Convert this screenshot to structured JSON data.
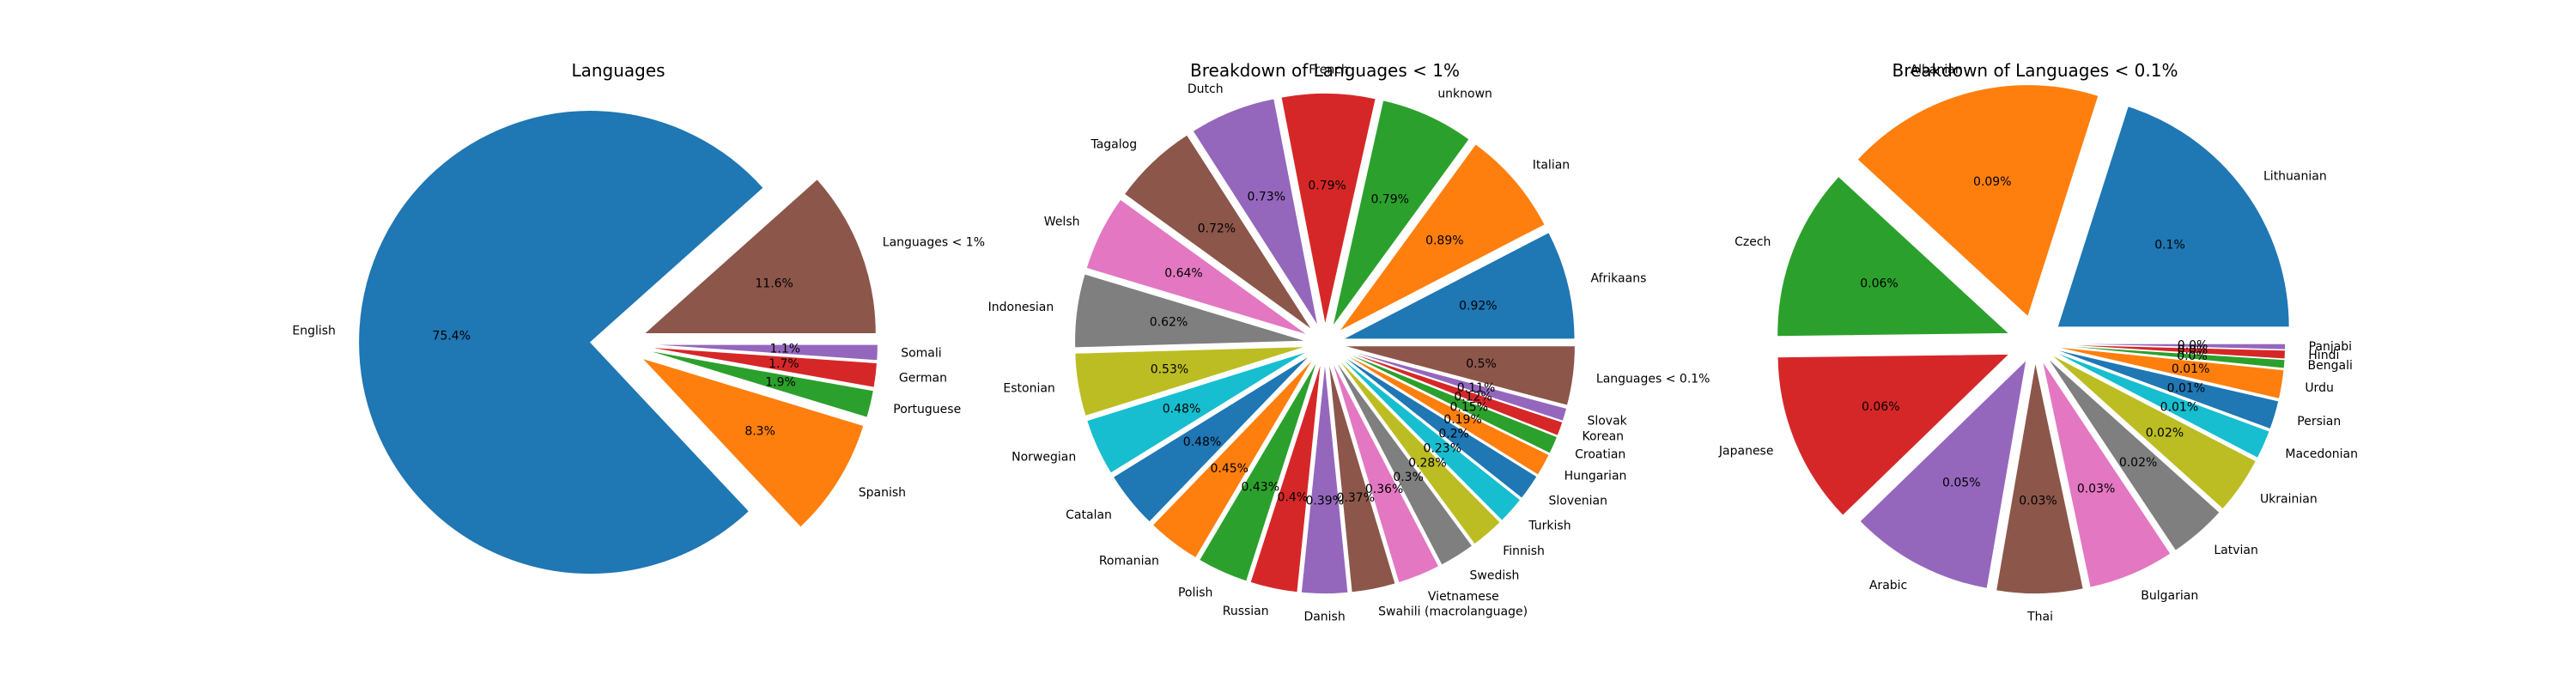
{
  "chart_data": [
    {
      "type": "pie",
      "title": "Languages",
      "start_angle": 0,
      "labels": [
        "Languages < 1%",
        "English",
        "Spanish",
        "Portuguese",
        "German",
        "Somali"
      ],
      "values": [
        11.6,
        75.4,
        8.3,
        1.9,
        1.7,
        1.1
      ],
      "pct_labels": [
        "11.6%",
        "75.4%",
        "8.3%",
        "1.9%",
        "1.7%",
        "1.1%"
      ],
      "colors": [
        "#8c564b",
        "#1f77b4",
        "#ff7f0e",
        "#2ca02c",
        "#d62728",
        "#9467bd"
      ],
      "explode": [
        0.12,
        0.12,
        0.12,
        0.12,
        0.12,
        0.12
      ]
    },
    {
      "type": "pie",
      "title": "Breakdown of Languages < 1%",
      "start_angle": 0,
      "labels": [
        "Afrikaans",
        "Italian",
        "unknown",
        "French",
        "Dutch",
        "Tagalog",
        "Welsh",
        "Indonesian",
        "Estonian",
        "Norwegian",
        "Catalan",
        "Romanian",
        "Polish",
        "Russian",
        "Danish",
        "Swahili (macrolanguage)",
        "Vietnamese",
        "Swedish",
        "Finnish",
        "Turkish",
        "Slovenian",
        "Hungarian",
        "Croatian",
        "Korean",
        "Slovak",
        "Languages < 0.1%"
      ],
      "values": [
        0.92,
        0.89,
        0.79,
        0.79,
        0.73,
        0.72,
        0.64,
        0.62,
        0.53,
        0.48,
        0.48,
        0.45,
        0.43,
        0.4,
        0.39,
        0.37,
        0.36,
        0.3,
        0.28,
        0.23,
        0.22,
        0.19,
        0.15,
        0.12,
        0.11,
        0.5
      ],
      "pct_labels": [
        "0.92%",
        "0.89%",
        "0.79%",
        "0.79%",
        "0.73%",
        "0.72%",
        "0.64%",
        "0.62%",
        "0.53%",
        "0.48%",
        "0.48%",
        "0.45%",
        "0.43%",
        "0.4%",
        "0.39%",
        "0.37%",
        "0.36%",
        "0.3%",
        "0.28%",
        "0.23%",
        "0.2%",
        "0.19%",
        "0.15%",
        "0.12%",
        "0.11%",
        "0.5%"
      ],
      "colors": [
        "#1f77b4",
        "#ff7f0e",
        "#2ca02c",
        "#d62728",
        "#9467bd",
        "#8c564b",
        "#e377c2",
        "#7f7f7f",
        "#bcbd22",
        "#17becf",
        "#1f77b4",
        "#ff7f0e",
        "#2ca02c",
        "#d62728",
        "#9467bd",
        "#8c564b",
        "#e377c2",
        "#7f7f7f",
        "#bcbd22",
        "#17becf",
        "#1f77b4",
        "#ff7f0e",
        "#2ca02c",
        "#d62728",
        "#9467bd",
        "#8c564b"
      ],
      "explode": [
        0.08,
        0.08,
        0.08,
        0.08,
        0.08,
        0.08,
        0.08,
        0.08,
        0.08,
        0.08,
        0.08,
        0.08,
        0.08,
        0.08,
        0.08,
        0.08,
        0.08,
        0.08,
        0.08,
        0.08,
        0.08,
        0.08,
        0.08,
        0.08,
        0.08,
        0.08
      ]
    },
    {
      "type": "pie",
      "title": "Breakdown of Languages < 0.1%",
      "start_angle": 0,
      "labels": [
        "Lithuanian",
        "Albanian",
        "Czech",
        "Japanese",
        "Arabic",
        "Thai",
        "Bulgarian",
        "Latvian",
        "Ukrainian",
        "Macedonian",
        "Persian",
        "Urdu",
        "Bengali",
        "Hindi",
        "Panjabi"
      ],
      "values": [
        0.1,
        0.09,
        0.06,
        0.06,
        0.05,
        0.03,
        0.03,
        0.02,
        0.02,
        0.01,
        0.01,
        0.01,
        0.003,
        0.003,
        0.002
      ],
      "pct_labels": [
        "0.1%",
        "0.09%",
        "0.06%",
        "0.06%",
        "0.05%",
        "0.03%",
        "0.03%",
        "0.02%",
        "0.02%",
        "0.01%",
        "0.01%",
        "0.01%",
        "0.0%",
        "0.0%",
        "0.0%"
      ],
      "colors": [
        "#1f77b4",
        "#ff7f0e",
        "#2ca02c",
        "#d62728",
        "#9467bd",
        "#8c564b",
        "#e377c2",
        "#7f7f7f",
        "#bcbd22",
        "#17becf",
        "#1f77b4",
        "#ff7f0e",
        "#2ca02c",
        "#d62728",
        "#9467bd"
      ],
      "explode": [
        0.12,
        0.12,
        0.12,
        0.12,
        0.08,
        0.08,
        0.08,
        0.08,
        0.08,
        0.08,
        0.08,
        0.08,
        0.08,
        0.08,
        0.08
      ]
    }
  ]
}
